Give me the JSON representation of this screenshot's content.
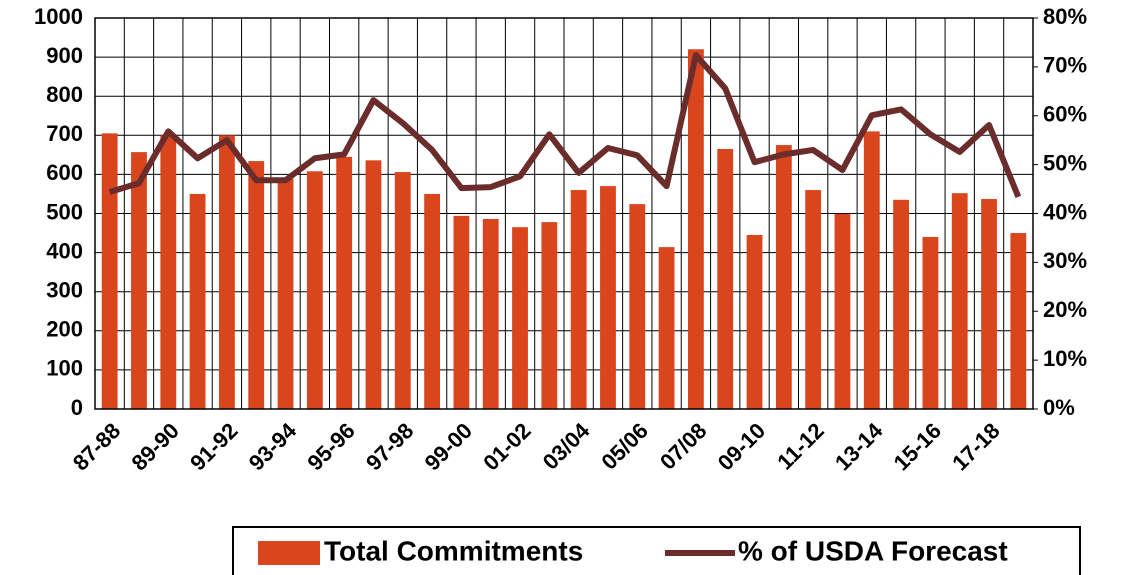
{
  "chart_data": {
    "type": "bar",
    "categories": [
      "87-88",
      null,
      "89-90",
      null,
      "91-92",
      null,
      "93-94",
      null,
      "95-96",
      null,
      "97-98",
      null,
      "99-00",
      null,
      "01-02",
      null,
      "03/04",
      null,
      "05/06",
      null,
      "07/08",
      null,
      "09-10",
      null,
      "11-12",
      null,
      "13-14",
      null,
      "15-16",
      null,
      "17-18",
      null
    ],
    "series": [
      {
        "name": "Total Commitments",
        "type": "bar",
        "color": "#d9461e",
        "values": [
          705,
          657,
          700,
          550,
          700,
          634,
          590,
          608,
          645,
          636,
          606,
          550,
          494,
          486,
          465,
          478,
          560,
          570,
          524,
          414,
          920,
          665,
          445,
          675,
          560,
          499,
          710,
          535,
          440,
          552,
          537,
          450
        ]
      },
      {
        "name": "% of USDA Forecast",
        "type": "line",
        "axis": "y2",
        "color": "#6b2c2c",
        "values": [
          44.4,
          46.2,
          56.8,
          51.3,
          55,
          46.8,
          46.8,
          51.3,
          52.1,
          63.2,
          58.5,
          53,
          45.2,
          45.4,
          47.6,
          56.2,
          48.3,
          53.4,
          51.9,
          45.6,
          72.4,
          65.6,
          50.5,
          52.1,
          53,
          48.9,
          60.1,
          61.3,
          56.2,
          52.6,
          58.1,
          43.4
        ]
      }
    ],
    "ylim": [
      0,
      1000
    ],
    "yticks": [
      0,
      100,
      200,
      300,
      400,
      500,
      600,
      700,
      800,
      900,
      1000
    ],
    "y2lim": [
      0,
      80
    ],
    "y2ticks": [
      {
        "value": 0,
        "label": "0%"
      },
      {
        "value": 10,
        "label": "10%"
      },
      {
        "value": 20,
        "label": "20%"
      },
      {
        "value": 30,
        "label": "30%"
      },
      {
        "value": 40,
        "label": "40%"
      },
      {
        "value": 50,
        "label": "50%"
      },
      {
        "value": 60,
        "label": "60%"
      },
      {
        "value": 70,
        "label": "70%"
      },
      {
        "value": 80,
        "label": "80%"
      }
    ],
    "grid": true,
    "legend": "bottom"
  }
}
